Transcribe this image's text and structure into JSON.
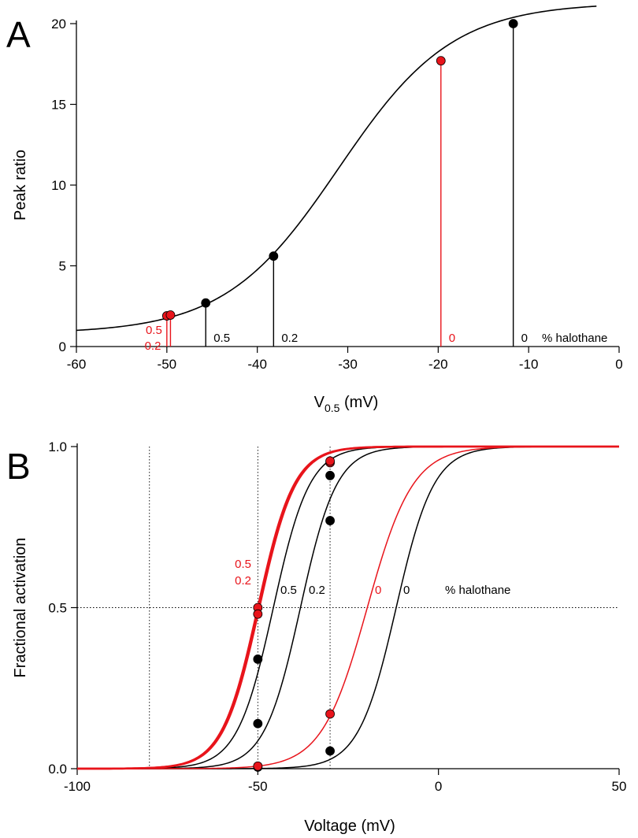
{
  "colors": {
    "black": "#000000",
    "red": "#e8141b"
  },
  "chart_data": [
    {
      "panel": "A",
      "type": "scatter",
      "xlabel": "V",
      "xlabel_sub": "0.5",
      "xlabel_unit": " (mV)",
      "ylabel": "Peak ratio",
      "xlim": [
        -60,
        0
      ],
      "ylim": [
        0,
        20
      ],
      "xticks": [
        -60,
        -50,
        -40,
        -30,
        -20,
        -10,
        0
      ],
      "yticks": [
        0,
        5,
        10,
        15,
        20
      ],
      "curve": {
        "type": "boltzmann",
        "min": 0.8,
        "max": 21.3,
        "v_half": -31,
        "slope": 6.3
      },
      "series": [
        {
          "color": "black",
          "points": [
            {
              "x": -45.7,
              "y": 2.7,
              "label": "0.5"
            },
            {
              "x": -38.2,
              "y": 5.6,
              "label": "0.2"
            },
            {
              "x": -11.7,
              "y": 20.0,
              "label": "0"
            }
          ]
        },
        {
          "color": "red",
          "points": [
            {
              "x": -50.0,
              "y": 1.9,
              "label": "0.5"
            },
            {
              "x": -49.6,
              "y": 1.95,
              "label": "0.2"
            },
            {
              "x": -19.7,
              "y": 17.7,
              "label": "0"
            }
          ]
        }
      ],
      "legend_title": "% halothane"
    },
    {
      "panel": "B",
      "type": "line",
      "xlabel": "Voltage (mV)",
      "ylabel": "Fractional activation",
      "xlim": [
        -100,
        50
      ],
      "ylim": [
        0,
        1
      ],
      "xticks": [
        -100,
        -50,
        0,
        50
      ],
      "ytick_labels": [
        "0.0",
        "0.5",
        "1.0"
      ],
      "reference_lines": {
        "x": [
          -80,
          -50,
          -30
        ],
        "y": [
          0.5
        ]
      },
      "series": [
        {
          "color": "black",
          "label": "0.5",
          "v_half": -45.7,
          "slope": 5.0,
          "points": [
            {
              "x": -50,
              "y": 0.34
            },
            {
              "x": -30,
              "y": 0.91
            }
          ]
        },
        {
          "color": "black",
          "label": "0.2",
          "v_half": -38.2,
          "slope": 5.0,
          "points": [
            {
              "x": -50,
              "y": 0.14
            },
            {
              "x": -30,
              "y": 0.77
            }
          ]
        },
        {
          "color": "black",
          "label": "0",
          "v_half": -11.7,
          "slope": 5.2,
          "points": [
            {
              "x": -50,
              "y": 0.005
            },
            {
              "x": -30,
              "y": 0.055
            }
          ]
        },
        {
          "color": "red",
          "label": "0.5",
          "v_half": -50.0,
          "slope": 5.0,
          "points": [
            {
              "x": -50,
              "y": 0.5
            },
            {
              "x": -30,
              "y": 0.95
            }
          ],
          "thick": true
        },
        {
          "color": "red",
          "label": "0.2",
          "v_half": -49.6,
          "slope": 5.0,
          "points": [
            {
              "x": -50,
              "y": 0.48
            },
            {
              "x": -30,
              "y": 0.955
            }
          ],
          "thick": true
        },
        {
          "color": "red",
          "label": "0",
          "v_half": -19.7,
          "slope": 6.3,
          "points": [
            {
              "x": -50,
              "y": 0.008
            },
            {
              "x": -30,
              "y": 0.17
            }
          ]
        }
      ],
      "legend_title": "% halothane"
    }
  ]
}
